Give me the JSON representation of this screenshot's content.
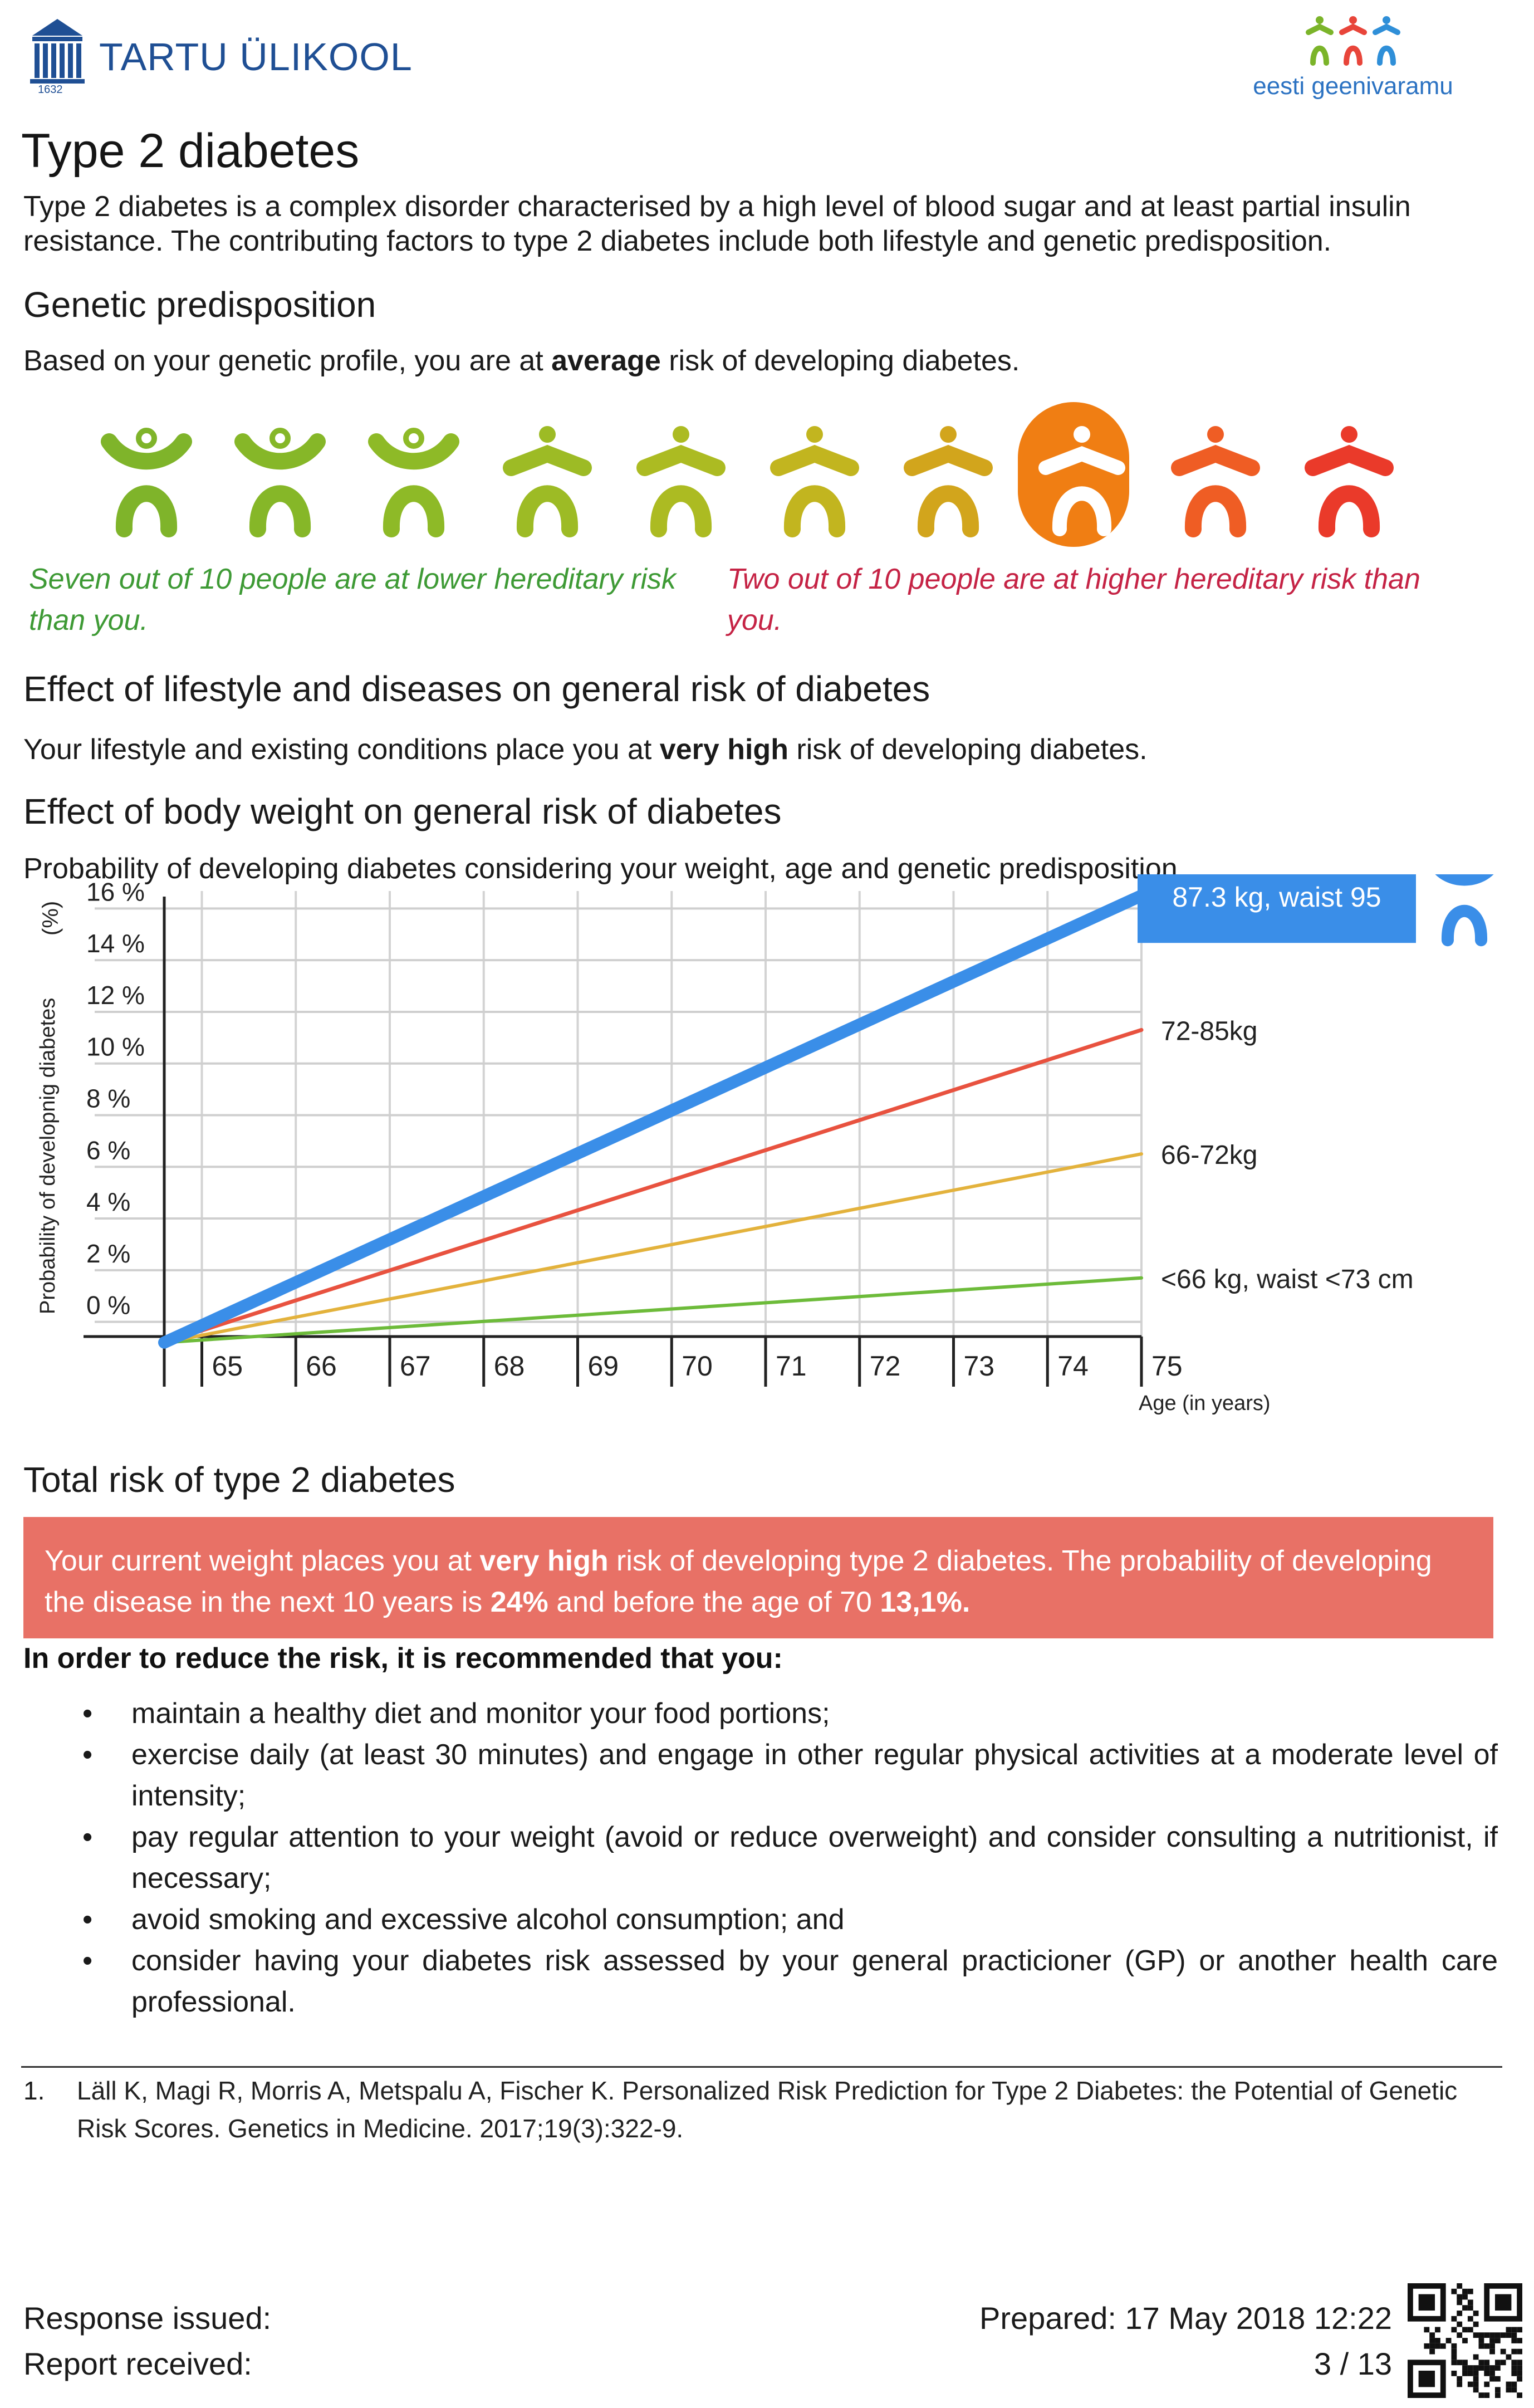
{
  "header": {
    "university_name": "TARTU ÜLIKOOL",
    "university_year": "1632",
    "biobank_name": "eesti geenivaramu"
  },
  "title": "Type 2 diabetes",
  "intro": "Type 2 diabetes is a complex disorder characterised by a high level of blood sugar and at least partial insulin resistance. The contributing factors to type 2 diabetes include both lifestyle and genetic predisposition.",
  "genetic": {
    "heading": "Genetic predisposition",
    "text_before": "Based on your genetic profile, you are at ",
    "risk_level": "average",
    "text_after": " risk of developing diabetes.",
    "icon_colors": [
      "#7fb42a",
      "#86b728",
      "#8eba27",
      "#9dbb25",
      "#acbb22",
      "#c2b51f",
      "#d2a51c",
      "#ffffff",
      "#ef5d24",
      "#ea3a2a"
    ],
    "highlight_index": 7,
    "lower_caption": "Seven out of 10 people are at lower hereditary risk than you.",
    "higher_caption": "Two out of 10 people are at higher hereditary risk than you."
  },
  "lifestyle": {
    "heading": "Effect of lifestyle and diseases on general risk of diabetes",
    "text_before": "Your lifestyle and existing conditions place you at ",
    "risk_level": "very high",
    "text_after": " risk of developing diabetes."
  },
  "bodyweight": {
    "heading": "Effect of body weight on general risk of diabetes",
    "subheading": "Probability of developing diabetes considering your weight, age and genetic predisposition."
  },
  "chart_data": {
    "type": "line",
    "ylabel": "Probability of developnig diabetes",
    "yunit": "(%)",
    "xlabel": "Age (in years)",
    "x_ticks": [
      "65",
      "66",
      "67",
      "68",
      "69",
      "70",
      "71",
      "72",
      "73",
      "74",
      "75"
    ],
    "y_ticks": [
      "0 %",
      "2 %",
      "4 %",
      "6 %",
      "8 %",
      "10 %",
      "12 %",
      "14 %",
      "16 %"
    ],
    "xlim": [
      64.6,
      75
    ],
    "ylim": [
      -1,
      17
    ],
    "grid": true,
    "series": [
      {
        "name": "87.3 kg, waist 95",
        "color": "#3a8ee8",
        "x": [
          64.6,
          75
        ],
        "y": [
          -0.8,
          16.5
        ]
      },
      {
        "name": "72-85kg",
        "color": "#e8523f",
        "x": [
          64.6,
          75
        ],
        "y": [
          -0.8,
          11.3
        ]
      },
      {
        "name": "66-72kg",
        "color": "#e3b23c",
        "x": [
          64.6,
          75
        ],
        "y": [
          -0.8,
          6.5
        ]
      },
      {
        "name": "<66 kg, waist <73 cm",
        "color": "#6dbb3a",
        "x": [
          64.6,
          75
        ],
        "y": [
          -0.8,
          1.7
        ]
      }
    ],
    "current_label": "87.3 kg, waist 95"
  },
  "total_risk": {
    "heading": "Total risk of type 2 diabetes",
    "p1": "Your current weight places you at ",
    "risk_level": "very high",
    "p2": " risk of developing type 2 diabetes. The probability of developing the disease in the next 10 years is ",
    "ten_year": "24%",
    "p3": " and before the age of 70 ",
    "before_70": "13,1%."
  },
  "recommendations": {
    "title": "In order to reduce the risk, it is recommended that you:",
    "bullet": "•",
    "items": [
      "maintain a healthy diet and monitor your food portions;",
      "exercise daily (at least 30 minutes) and engage in other regular physical activities at a moderate level of intensity;",
      "pay regular attention to your weight (avoid or reduce overweight) and consider consulting a nutritionist, if necessary;",
      "avoid smoking and excessive alcohol consumption; and",
      "consider having your diabetes risk assessed by your general practicioner (GP) or another health care professional."
    ]
  },
  "footnote": {
    "number": "1.",
    "text": "Läll K, Magi R, Morris A, Metspalu A, Fischer K. Personalized Risk Prediction for Type 2 Diabetes: the Potential of Genetic Risk Scores. Genetics in Medicine. 2017;19(3):322-9."
  },
  "footer": {
    "response_issued": "Response issued:",
    "report_received": "Report received:",
    "prepared": "Prepared: 17 May 2018 12:22",
    "page": "3 / 13"
  }
}
